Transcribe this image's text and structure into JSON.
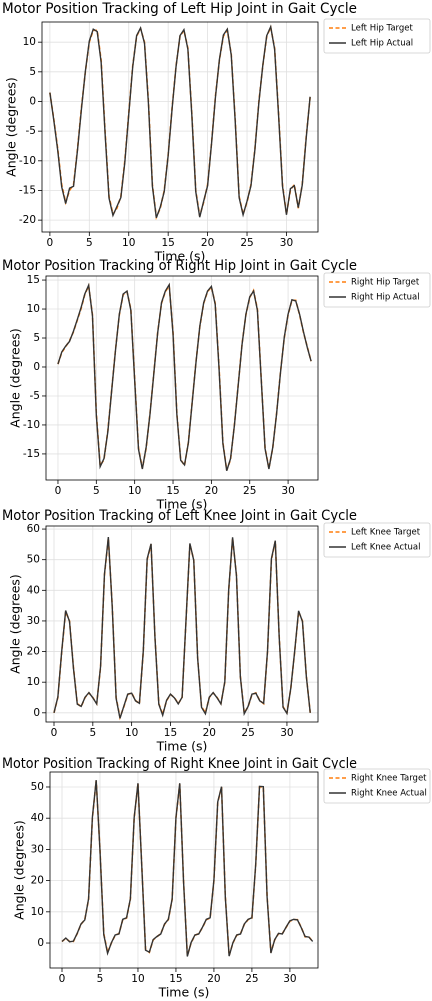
{
  "chart_data": [
    {
      "type": "line",
      "title": "Motor Position Tracking of Left Hip Joint in Gait Cycle",
      "xlabel": "Time (s)",
      "ylabel": "Angle (degrees)",
      "x": [
        0,
        0.5,
        1,
        1.5,
        2,
        2.5,
        3,
        3.5,
        4,
        4.5,
        5,
        5.5,
        6,
        6.5,
        7,
        7.5,
        8,
        8.5,
        9,
        9.5,
        10,
        10.5,
        11,
        11.5,
        12,
        12.5,
        13,
        13.5,
        14,
        14.5,
        15,
        15.5,
        16,
        16.5,
        17,
        17.5,
        18,
        18.5,
        19,
        19.5,
        20,
        20.5,
        21,
        21.5,
        22,
        22.5,
        23,
        23.5,
        24,
        24.5,
        25,
        25.5,
        26,
        26.5,
        27,
        27.5,
        28,
        28.5,
        29,
        29.5,
        30,
        30.5,
        31,
        31.5,
        32,
        32.5,
        33
      ],
      "series": [
        {
          "name": "Left Hip Target",
          "color": "#ff7f0e",
          "linestyle": "dashed",
          "values": [
            1.5,
            -3,
            -8,
            -14,
            -17,
            -15,
            -14,
            -8,
            -1,
            5,
            10,
            12,
            12,
            7,
            -5,
            -16,
            -19,
            -18,
            -16,
            -10,
            -2,
            6,
            11,
            12.3,
            10,
            0,
            -14,
            -19.5,
            -18,
            -15,
            -9,
            -1,
            6,
            11,
            12,
            9,
            -2,
            -15,
            -19.3,
            -17,
            -14,
            -7,
            1,
            7,
            11,
            12,
            8,
            -3,
            -16,
            -19,
            -17,
            -14,
            -8,
            0,
            6,
            11,
            12.5,
            9,
            -2,
            -14,
            -19,
            -15,
            -14,
            -18,
            -14,
            -6,
            0.7
          ]
        },
        {
          "name": "Left Hip Actual",
          "color": "#333333",
          "linestyle": "solid",
          "values": [
            1.5,
            -3.2,
            -8.3,
            -14.4,
            -17.2,
            -14.6,
            -14.3,
            -8.2,
            -1.3,
            5.1,
            10.2,
            12.2,
            11.8,
            6.6,
            -5.4,
            -16.3,
            -19.2,
            -17.7,
            -16.2,
            -10.3,
            -2.2,
            5.8,
            11.1,
            12.4,
            9.8,
            -0.4,
            -14.3,
            -19.6,
            -17.8,
            -15.2,
            -9.1,
            -1.2,
            5.9,
            11.1,
            12.1,
            8.8,
            -2.3,
            -15.2,
            -19.5,
            -16.8,
            -14.2,
            -7.1,
            0.8,
            7.1,
            11.2,
            12.2,
            7.8,
            -3.3,
            -16.2,
            -19.1,
            -16.8,
            -14.2,
            -8.1,
            -0.2,
            6.1,
            11.1,
            12.6,
            8.8,
            -2.3,
            -14.3,
            -19.1,
            -14.7,
            -14.2,
            -17.9,
            -14.1,
            -6.2,
            0.8
          ]
        }
      ],
      "xlim": [
        -1,
        34
      ],
      "ylim": [
        -22,
        13.4
      ],
      "xticks": [
        0,
        5,
        10,
        15,
        20,
        25,
        30
      ],
      "yticks": [
        -20,
        -15,
        -10,
        -5,
        0,
        5,
        10
      ],
      "grid": true
    },
    {
      "type": "line",
      "title": "Motor Position Tracking of Right Hip Joint in Gait Cycle",
      "xlabel": "Time (s)",
      "ylabel": "Angle (degrees)",
      "x": [
        0,
        0.5,
        1,
        1.5,
        2,
        2.5,
        3,
        3.5,
        4,
        4.5,
        5,
        5.5,
        6,
        6.5,
        7,
        7.5,
        8,
        8.5,
        9,
        9.5,
        10,
        10.5,
        11,
        11.5,
        12,
        12.5,
        13,
        13.5,
        14,
        14.5,
        15,
        15.5,
        16,
        16.5,
        17,
        17.5,
        18,
        18.5,
        19,
        19.5,
        20,
        20.5,
        21,
        21.5,
        22,
        22.5,
        23,
        23.5,
        24,
        24.5,
        25,
        25.5,
        26,
        26.5,
        27,
        27.5,
        28,
        28.5,
        29,
        29.5,
        30,
        30.5,
        31,
        31.5,
        32,
        32.5,
        33
      ],
      "series": [
        {
          "name": "Right Hip Target",
          "color": "#ff7f0e",
          "linestyle": "dashed",
          "values": [
            0.5,
            2.5,
            3.5,
            4.5,
            6,
            8,
            10,
            12.5,
            14,
            9,
            -8,
            -17,
            -16,
            -11,
            -4,
            3,
            9,
            12.5,
            13,
            10,
            -2,
            -14,
            -17.5,
            -14,
            -8,
            -1,
            6,
            11,
            13,
            14,
            6,
            -8,
            -16,
            -17,
            -13,
            -6,
            1,
            7,
            11,
            13,
            13.8,
            11,
            0,
            -13,
            -17.8,
            -16,
            -10,
            -3,
            4,
            9,
            12,
            13.2,
            10,
            -2,
            -14,
            -17.5,
            -14,
            -8,
            -1,
            5,
            9,
            11.5,
            11.5,
            9,
            6,
            3.5,
            1
          ]
        },
        {
          "name": "Right Hip Actual",
          "color": "#333333",
          "linestyle": "solid",
          "values": [
            0.5,
            2.6,
            3.6,
            4.4,
            6.1,
            8.1,
            10.2,
            12.6,
            14.1,
            8.8,
            -8.3,
            -17.2,
            -15.8,
            -11.2,
            -4.1,
            2.9,
            9.1,
            12.6,
            13.1,
            9.8,
            -2.3,
            -14.2,
            -17.6,
            -13.8,
            -8.1,
            -1.1,
            5.9,
            11.1,
            13.1,
            14.2,
            5.7,
            -8.2,
            -16.1,
            -16.9,
            -13.1,
            -6.1,
            0.9,
            7.1,
            11.1,
            13.1,
            13.9,
            10.8,
            -0.3,
            -13.2,
            -17.9,
            -15.8,
            -10.1,
            -3.1,
            3.9,
            9.1,
            12.1,
            13.1,
            9.8,
            -2.2,
            -14.1,
            -17.6,
            -13.9,
            -8.1,
            -1.1,
            5.1,
            9.1,
            11.6,
            11.4,
            9.1,
            6.1,
            3.4,
            1
          ]
        }
      ],
      "xlim": [
        -1.56,
        33.9
      ],
      "ylim": [
        -19.5,
        15.7
      ],
      "xticks": [
        0,
        5,
        10,
        15,
        20,
        25,
        30
      ],
      "yticks": [
        -15,
        -10,
        -5,
        0,
        5,
        10,
        15
      ],
      "grid": true
    },
    {
      "type": "line",
      "title": "Motor Position Tracking of Left Knee Joint in Gait Cycle",
      "xlabel": "Time (s)",
      "ylabel": "Angle (degrees)",
      "x": [
        0,
        0.5,
        1,
        1.5,
        2,
        2.5,
        3,
        3.5,
        4,
        4.5,
        5,
        5.5,
        6,
        6.5,
        7,
        7.5,
        8,
        8.5,
        9,
        9.5,
        10,
        10.5,
        11,
        11.5,
        12,
        12.5,
        13,
        13.5,
        14,
        14.5,
        15,
        15.5,
        16,
        16.5,
        17,
        17.5,
        18,
        18.5,
        19,
        19.5,
        20,
        20.5,
        21,
        21.5,
        22,
        22.5,
        23,
        23.5,
        24,
        24.5,
        25,
        25.5,
        26,
        26.5,
        27,
        27.5,
        28,
        28.5,
        29,
        29.5,
        30,
        30.5,
        31,
        31.5,
        32,
        32.5,
        33
      ],
      "series": [
        {
          "name": "Left Knee Target",
          "color": "#ff7f0e",
          "linestyle": "dashed",
          "values": [
            0,
            5,
            20,
            33,
            30,
            15,
            3,
            2,
            5,
            6.5,
            5,
            3,
            15,
            45,
            57,
            35,
            5,
            -1.5,
            2,
            6,
            6.5,
            4,
            3,
            20,
            50,
            55,
            25,
            3,
            -0.5,
            4,
            6,
            5,
            3,
            5,
            30,
            55,
            50,
            18,
            2,
            0,
            5,
            6.5,
            5,
            3,
            10,
            40,
            57,
            45,
            12,
            0,
            2,
            6,
            6.5,
            4,
            3,
            20,
            50,
            56,
            25,
            2,
            0,
            8,
            20,
            33,
            30,
            12,
            0
          ]
        },
        {
          "name": "Left Knee Actual",
          "color": "#333333",
          "linestyle": "solid",
          "values": [
            0,
            5.2,
            20.3,
            33.4,
            29.8,
            14.7,
            2.8,
            2.1,
            5.1,
            6.6,
            4.9,
            2.9,
            15.2,
            45.3,
            57.4,
            34.6,
            4.7,
            -1.8,
            2.2,
            6.1,
            6.4,
            3.9,
            3.1,
            20.2,
            50.3,
            55.2,
            24.7,
            2.8,
            -0.8,
            4.1,
            6.1,
            4.9,
            2.9,
            5.1,
            30.2,
            55.3,
            49.8,
            17.8,
            1.8,
            -0.3,
            5.1,
            6.6,
            4.9,
            2.9,
            10.2,
            40.3,
            57.3,
            44.7,
            11.8,
            -0.3,
            2.1,
            6.1,
            6.4,
            3.9,
            3.1,
            20.2,
            50.3,
            56.2,
            24.8,
            1.8,
            -0.2,
            8.1,
            20.2,
            33.3,
            29.8,
            11.8,
            0
          ]
        }
      ],
      "xlim": [
        -1.03,
        34
      ],
      "ylim": [
        -3,
        61
      ],
      "xticks": [
        0,
        5,
        10,
        15,
        20,
        25,
        30
      ],
      "yticks": [
        0,
        10,
        20,
        30,
        40,
        50,
        60
      ],
      "grid": true
    },
    {
      "type": "line",
      "title": "Motor Position Tracking of Right Knee Joint in Gait Cycle",
      "xlabel": "Time (s)",
      "ylabel": "Angle (degrees)",
      "x": [
        0,
        0.5,
        1,
        1.5,
        2,
        2.5,
        3,
        3.5,
        4,
        4.5,
        5,
        5.5,
        6,
        6.5,
        7,
        7.5,
        8,
        8.5,
        9,
        9.5,
        10,
        10.5,
        11,
        11.5,
        12,
        12.5,
        13,
        13.5,
        14,
        14.5,
        15,
        15.5,
        16,
        16.5,
        17,
        17.5,
        18,
        18.5,
        19,
        19.5,
        20,
        20.5,
        21,
        21.5,
        22,
        22.5,
        23,
        23.5,
        24,
        24.5,
        25,
        25.5,
        26,
        26.5,
        27,
        27.5,
        28,
        28.5,
        29,
        29.5,
        30,
        30.5,
        31,
        31.5,
        32,
        32.5,
        33
      ],
      "series": [
        {
          "name": "Right Knee Target",
          "color": "#ff7f0e",
          "linestyle": "dashed",
          "values": [
            0.5,
            1.5,
            0.5,
            0.5,
            3,
            6,
            7.5,
            14,
            40,
            52,
            30,
            3,
            -3,
            0,
            2.5,
            3,
            7.5,
            8,
            14,
            40,
            51,
            25,
            -2,
            -3,
            1,
            2,
            3,
            6,
            7.5,
            14,
            40,
            51,
            20,
            -4,
            0,
            2.5,
            3,
            5,
            7.5,
            8,
            20,
            45,
            50,
            15,
            -4,
            0,
            2.5,
            3,
            6,
            7.5,
            8,
            25,
            50,
            50,
            15,
            -3,
            1,
            3,
            3,
            5,
            7,
            7.5,
            7.5,
            5,
            2,
            2,
            0.5
          ]
        },
        {
          "name": "Right Knee Actual",
          "color": "#333333",
          "linestyle": "solid",
          "values": [
            0.5,
            1.6,
            0.4,
            0.6,
            3.1,
            6.1,
            7.4,
            14.2,
            40.3,
            52.2,
            29.7,
            2.7,
            -3.3,
            0.1,
            2.6,
            2.9,
            7.6,
            8.1,
            14.2,
            40.2,
            51.2,
            24.7,
            -2.3,
            -2.9,
            1.1,
            2.1,
            2.9,
            6.1,
            7.6,
            14.1,
            40.2,
            51.2,
            19.7,
            -4.3,
            0.2,
            2.6,
            2.9,
            5.1,
            7.6,
            8.1,
            20.2,
            45.2,
            50.1,
            14.7,
            -4.2,
            0.1,
            2.6,
            2.9,
            6.1,
            7.6,
            8.1,
            25.2,
            50.2,
            50.1,
            14.7,
            -3.2,
            1.1,
            3.1,
            2.9,
            5.1,
            7.1,
            7.6,
            7.4,
            4.9,
            2.1,
            1.9,
            0.5
          ]
        }
      ],
      "xlim": [
        -1.58,
        33.7
      ],
      "ylim": [
        -8,
        54.8
      ],
      "xticks": [
        0,
        5,
        10,
        15,
        20,
        25,
        30
      ],
      "yticks": [
        0,
        10,
        20,
        30,
        40,
        50
      ],
      "grid": true
    }
  ]
}
